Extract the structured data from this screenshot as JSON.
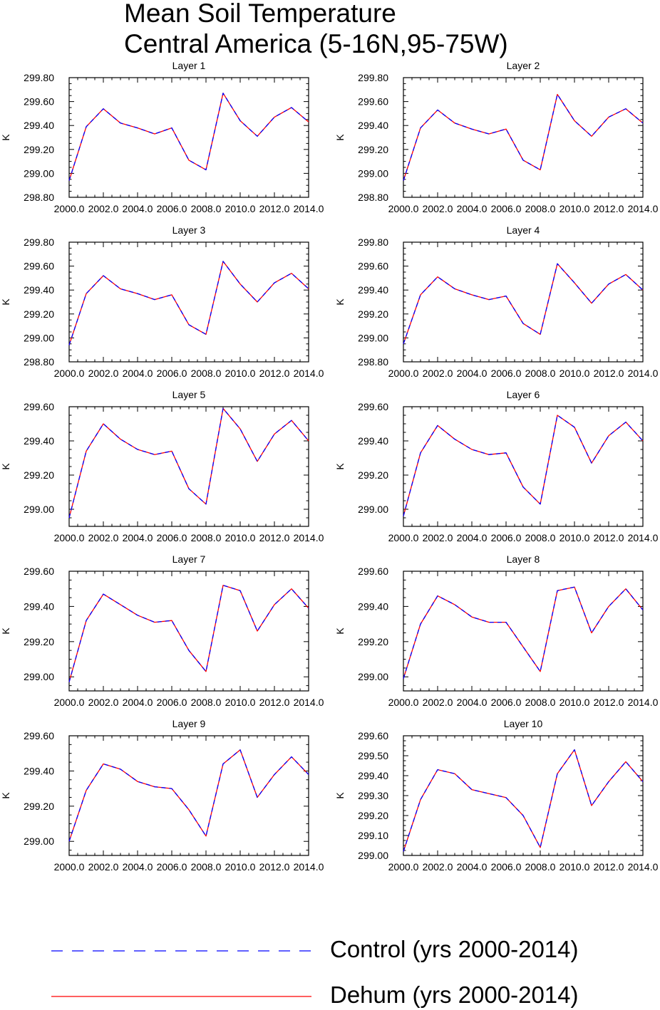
{
  "title_line1": "Mean Soil Temperature",
  "title_line2": "Central America (5-16N,95-75W)",
  "legend": [
    {
      "label": "Control (yrs 2000-2014)",
      "color": "#0000ff",
      "style": "dashed"
    },
    {
      "label": "Dehum (yrs 2000-2014)",
      "color": "#ff0000",
      "style": "solid"
    }
  ],
  "chart_data": [
    {
      "type": "line",
      "title": "Layer 1",
      "ylabel": "K",
      "x": [
        2000,
        2001,
        2002,
        2003,
        2004,
        2005,
        2006,
        2007,
        2008,
        2009,
        2010,
        2011,
        2012,
        2013,
        2014
      ],
      "xlim": [
        2000,
        2014
      ],
      "xticks": [
        2000,
        2002,
        2004,
        2006,
        2008,
        2010,
        2012,
        2014
      ],
      "xtick_labels": [
        "2000.0",
        "2002.0",
        "2004.0",
        "2006.0",
        "2008.0",
        "2010.0",
        "2012.0",
        "2014.0"
      ],
      "ylim": [
        298.8,
        299.8
      ],
      "yticks": [
        298.8,
        299.0,
        299.2,
        299.4,
        299.6,
        299.8
      ],
      "ytick_labels": [
        "298.80",
        "299.00",
        "299.20",
        "299.40",
        "299.60",
        "299.80"
      ],
      "series": [
        {
          "name": "Control (yrs 2000-2014)",
          "values": [
            298.94,
            299.39,
            299.54,
            299.42,
            299.38,
            299.33,
            299.38,
            299.11,
            299.03,
            299.67,
            299.44,
            299.31,
            299.47,
            299.55,
            299.43
          ]
        },
        {
          "name": "Dehum (yrs 2000-2014)",
          "values": [
            298.94,
            299.39,
            299.54,
            299.42,
            299.38,
            299.33,
            299.38,
            299.11,
            299.03,
            299.67,
            299.44,
            299.31,
            299.47,
            299.55,
            299.43
          ]
        }
      ]
    },
    {
      "type": "line",
      "title": "Layer 2",
      "ylabel": "K",
      "x": [
        2000,
        2001,
        2002,
        2003,
        2004,
        2005,
        2006,
        2007,
        2008,
        2009,
        2010,
        2011,
        2012,
        2013,
        2014
      ],
      "xlim": [
        2000,
        2014
      ],
      "xticks": [
        2000,
        2002,
        2004,
        2006,
        2008,
        2010,
        2012,
        2014
      ],
      "xtick_labels": [
        "2000.0",
        "2002.0",
        "2004.0",
        "2006.0",
        "2008.0",
        "2010.0",
        "2012.0",
        "2014.0"
      ],
      "ylim": [
        298.8,
        299.8
      ],
      "yticks": [
        298.8,
        299.0,
        299.2,
        299.4,
        299.6,
        299.8
      ],
      "ytick_labels": [
        "298.80",
        "299.00",
        "299.20",
        "299.40",
        "299.60",
        "299.80"
      ],
      "series": [
        {
          "name": "Control (yrs 2000-2014)",
          "values": [
            298.94,
            299.38,
            299.53,
            299.42,
            299.37,
            299.33,
            299.37,
            299.11,
            299.03,
            299.66,
            299.44,
            299.31,
            299.47,
            299.54,
            299.42
          ]
        },
        {
          "name": "Dehum (yrs 2000-2014)",
          "values": [
            298.94,
            299.38,
            299.53,
            299.42,
            299.37,
            299.33,
            299.37,
            299.11,
            299.03,
            299.66,
            299.44,
            299.31,
            299.47,
            299.54,
            299.42
          ]
        }
      ]
    },
    {
      "type": "line",
      "title": "Layer 3",
      "ylabel": "K",
      "x": [
        2000,
        2001,
        2002,
        2003,
        2004,
        2005,
        2006,
        2007,
        2008,
        2009,
        2010,
        2011,
        2012,
        2013,
        2014
      ],
      "xlim": [
        2000,
        2014
      ],
      "xticks": [
        2000,
        2002,
        2004,
        2006,
        2008,
        2010,
        2012,
        2014
      ],
      "xtick_labels": [
        "2000.0",
        "2002.0",
        "2004.0",
        "2006.0",
        "2008.0",
        "2010.0",
        "2012.0",
        "2014.0"
      ],
      "ylim": [
        298.8,
        299.8
      ],
      "yticks": [
        298.8,
        299.0,
        299.2,
        299.4,
        299.6,
        299.8
      ],
      "ytick_labels": [
        "298.80",
        "299.00",
        "299.20",
        "299.40",
        "299.60",
        "299.80"
      ],
      "series": [
        {
          "name": "Control (yrs 2000-2014)",
          "values": [
            298.94,
            299.37,
            299.52,
            299.41,
            299.37,
            299.32,
            299.36,
            299.11,
            299.03,
            299.64,
            299.45,
            299.3,
            299.46,
            299.54,
            299.41
          ]
        },
        {
          "name": "Dehum (yrs 2000-2014)",
          "values": [
            298.94,
            299.37,
            299.52,
            299.41,
            299.37,
            299.32,
            299.36,
            299.11,
            299.03,
            299.64,
            299.45,
            299.3,
            299.46,
            299.54,
            299.41
          ]
        }
      ]
    },
    {
      "type": "line",
      "title": "Layer 4",
      "ylabel": "K",
      "x": [
        2000,
        2001,
        2002,
        2003,
        2004,
        2005,
        2006,
        2007,
        2008,
        2009,
        2010,
        2011,
        2012,
        2013,
        2014
      ],
      "xlim": [
        2000,
        2014
      ],
      "xticks": [
        2000,
        2002,
        2004,
        2006,
        2008,
        2010,
        2012,
        2014
      ],
      "xtick_labels": [
        "2000.0",
        "2002.0",
        "2004.0",
        "2006.0",
        "2008.0",
        "2010.0",
        "2012.0",
        "2014.0"
      ],
      "ylim": [
        298.8,
        299.8
      ],
      "yticks": [
        298.8,
        299.0,
        299.2,
        299.4,
        299.6,
        299.8
      ],
      "ytick_labels": [
        "298.80",
        "299.00",
        "299.20",
        "299.40",
        "299.60",
        "299.80"
      ],
      "series": [
        {
          "name": "Control (yrs 2000-2014)",
          "values": [
            298.95,
            299.36,
            299.51,
            299.41,
            299.36,
            299.32,
            299.35,
            299.12,
            299.03,
            299.62,
            299.46,
            299.29,
            299.45,
            299.53,
            299.4
          ]
        },
        {
          "name": "Dehum (yrs 2000-2014)",
          "values": [
            298.95,
            299.36,
            299.51,
            299.41,
            299.36,
            299.32,
            299.35,
            299.12,
            299.03,
            299.62,
            299.46,
            299.29,
            299.45,
            299.53,
            299.4
          ]
        }
      ]
    },
    {
      "type": "line",
      "title": "Layer 5",
      "ylabel": "K",
      "x": [
        2000,
        2001,
        2002,
        2003,
        2004,
        2005,
        2006,
        2007,
        2008,
        2009,
        2010,
        2011,
        2012,
        2013,
        2014
      ],
      "xlim": [
        2000,
        2014
      ],
      "xticks": [
        2000,
        2002,
        2004,
        2006,
        2008,
        2010,
        2012,
        2014
      ],
      "xtick_labels": [
        "2000.0",
        "2002.0",
        "2004.0",
        "2006.0",
        "2008.0",
        "2010.0",
        "2012.0",
        "2014.0"
      ],
      "ylim": [
        298.9,
        299.6
      ],
      "yticks": [
        299.0,
        299.2,
        299.4,
        299.6
      ],
      "ytick_labels": [
        "299.00",
        "299.20",
        "299.40",
        "299.60"
      ],
      "series": [
        {
          "name": "Control (yrs 2000-2014)",
          "values": [
            298.95,
            299.34,
            299.5,
            299.41,
            299.35,
            299.32,
            299.34,
            299.12,
            299.03,
            299.59,
            299.47,
            299.28,
            299.44,
            299.52,
            299.4
          ]
        },
        {
          "name": "Dehum (yrs 2000-2014)",
          "values": [
            298.95,
            299.34,
            299.5,
            299.41,
            299.35,
            299.32,
            299.34,
            299.12,
            299.03,
            299.59,
            299.47,
            299.28,
            299.44,
            299.52,
            299.4
          ]
        }
      ]
    },
    {
      "type": "line",
      "title": "Layer 6",
      "ylabel": "K",
      "x": [
        2000,
        2001,
        2002,
        2003,
        2004,
        2005,
        2006,
        2007,
        2008,
        2009,
        2010,
        2011,
        2012,
        2013,
        2014
      ],
      "xlim": [
        2000,
        2014
      ],
      "xticks": [
        2000,
        2002,
        2004,
        2006,
        2008,
        2010,
        2012,
        2014
      ],
      "xtick_labels": [
        "2000.0",
        "2002.0",
        "2004.0",
        "2006.0",
        "2008.0",
        "2010.0",
        "2012.0",
        "2014.0"
      ],
      "ylim": [
        298.9,
        299.6
      ],
      "yticks": [
        299.0,
        299.2,
        299.4,
        299.6
      ],
      "ytick_labels": [
        "299.00",
        "299.20",
        "299.40",
        "299.60"
      ],
      "series": [
        {
          "name": "Control (yrs 2000-2014)",
          "values": [
            298.96,
            299.33,
            299.49,
            299.41,
            299.35,
            299.32,
            299.33,
            299.13,
            299.03,
            299.55,
            299.48,
            299.27,
            299.43,
            299.51,
            299.4
          ]
        },
        {
          "name": "Dehum (yrs 2000-2014)",
          "values": [
            298.96,
            299.33,
            299.49,
            299.41,
            299.35,
            299.32,
            299.33,
            299.13,
            299.03,
            299.55,
            299.48,
            299.27,
            299.43,
            299.51,
            299.4
          ]
        }
      ]
    },
    {
      "type": "line",
      "title": "Layer 7",
      "ylabel": "K",
      "x": [
        2000,
        2001,
        2002,
        2003,
        2004,
        2005,
        2006,
        2007,
        2008,
        2009,
        2010,
        2011,
        2012,
        2013,
        2014
      ],
      "xlim": [
        2000,
        2014
      ],
      "xticks": [
        2000,
        2002,
        2004,
        2006,
        2008,
        2010,
        2012,
        2014
      ],
      "xtick_labels": [
        "2000.0",
        "2002.0",
        "2004.0",
        "2006.0",
        "2008.0",
        "2010.0",
        "2012.0",
        "2014.0"
      ],
      "ylim": [
        298.92,
        299.6
      ],
      "yticks": [
        299.0,
        299.2,
        299.4,
        299.6
      ],
      "ytick_labels": [
        "299.00",
        "299.20",
        "299.40",
        "299.60"
      ],
      "series": [
        {
          "name": "Control (yrs 2000-2014)",
          "values": [
            298.97,
            299.32,
            299.47,
            299.41,
            299.35,
            299.31,
            299.32,
            299.15,
            299.03,
            299.52,
            299.49,
            299.26,
            299.41,
            299.5,
            299.39
          ]
        },
        {
          "name": "Dehum (yrs 2000-2014)",
          "values": [
            298.97,
            299.32,
            299.47,
            299.41,
            299.35,
            299.31,
            299.32,
            299.15,
            299.03,
            299.52,
            299.49,
            299.26,
            299.41,
            299.5,
            299.39
          ]
        }
      ]
    },
    {
      "type": "line",
      "title": "Layer 8",
      "ylabel": "K",
      "x": [
        2000,
        2001,
        2002,
        2003,
        2004,
        2005,
        2006,
        2007,
        2008,
        2009,
        2010,
        2011,
        2012,
        2013,
        2014
      ],
      "xlim": [
        2000,
        2014
      ],
      "xticks": [
        2000,
        2002,
        2004,
        2006,
        2008,
        2010,
        2012,
        2014
      ],
      "xtick_labels": [
        "2000.0",
        "2002.0",
        "2004.0",
        "2006.0",
        "2008.0",
        "2010.0",
        "2012.0",
        "2014.0"
      ],
      "ylim": [
        298.92,
        299.6
      ],
      "yticks": [
        299.0,
        299.2,
        299.4,
        299.6
      ],
      "ytick_labels": [
        "299.00",
        "299.20",
        "299.40",
        "299.60"
      ],
      "series": [
        {
          "name": "Control (yrs 2000-2014)",
          "values": [
            298.99,
            299.3,
            299.46,
            299.41,
            299.34,
            299.31,
            299.31,
            299.17,
            299.03,
            299.49,
            299.51,
            299.25,
            299.4,
            299.5,
            299.38
          ]
        },
        {
          "name": "Dehum (yrs 2000-2014)",
          "values": [
            298.99,
            299.3,
            299.46,
            299.41,
            299.34,
            299.31,
            299.31,
            299.17,
            299.03,
            299.49,
            299.51,
            299.25,
            299.4,
            299.5,
            299.38
          ]
        }
      ]
    },
    {
      "type": "line",
      "title": "Layer 9",
      "ylabel": "K",
      "x": [
        2000,
        2001,
        2002,
        2003,
        2004,
        2005,
        2006,
        2007,
        2008,
        2009,
        2010,
        2011,
        2012,
        2013,
        2014
      ],
      "xlim": [
        2000,
        2014
      ],
      "xticks": [
        2000,
        2002,
        2004,
        2006,
        2008,
        2010,
        2012,
        2014
      ],
      "xtick_labels": [
        "2000.0",
        "2002.0",
        "2004.0",
        "2006.0",
        "2008.0",
        "2010.0",
        "2012.0",
        "2014.0"
      ],
      "ylim": [
        298.92,
        299.6
      ],
      "yticks": [
        299.0,
        299.2,
        299.4,
        299.6
      ],
      "ytick_labels": [
        "299.00",
        "299.20",
        "299.40",
        "299.60"
      ],
      "series": [
        {
          "name": "Control (yrs 2000-2014)",
          "values": [
            299.0,
            299.29,
            299.44,
            299.41,
            299.34,
            299.31,
            299.3,
            299.18,
            299.03,
            299.44,
            299.52,
            299.25,
            299.38,
            299.48,
            299.38
          ]
        },
        {
          "name": "Dehum (yrs 2000-2014)",
          "values": [
            299.0,
            299.29,
            299.44,
            299.41,
            299.34,
            299.31,
            299.3,
            299.18,
            299.03,
            299.44,
            299.52,
            299.25,
            299.38,
            299.48,
            299.38
          ]
        }
      ]
    },
    {
      "type": "line",
      "title": "Layer 10",
      "ylabel": "K",
      "x": [
        2000,
        2001,
        2002,
        2003,
        2004,
        2005,
        2006,
        2007,
        2008,
        2009,
        2010,
        2011,
        2012,
        2013,
        2014
      ],
      "xlim": [
        2000,
        2014
      ],
      "xticks": [
        2000,
        2002,
        2004,
        2006,
        2008,
        2010,
        2012,
        2014
      ],
      "xtick_labels": [
        "2000.0",
        "2002.0",
        "2004.0",
        "2006.0",
        "2008.0",
        "2010.0",
        "2012.0",
        "2014.0"
      ],
      "ylim": [
        299.0,
        299.6
      ],
      "yticks": [
        299.0,
        299.1,
        299.2,
        299.3,
        299.4,
        299.5,
        299.6
      ],
      "ytick_labels": [
        "299.00",
        "299.10",
        "299.20",
        "299.30",
        "299.40",
        "299.50",
        "299.60"
      ],
      "series": [
        {
          "name": "Control (yrs 2000-2014)",
          "values": [
            299.02,
            299.28,
            299.43,
            299.41,
            299.33,
            299.31,
            299.29,
            299.2,
            299.04,
            299.41,
            299.53,
            299.25,
            299.37,
            299.47,
            299.37
          ]
        },
        {
          "name": "Dehum (yrs 2000-2014)",
          "values": [
            299.02,
            299.28,
            299.43,
            299.41,
            299.33,
            299.31,
            299.29,
            299.2,
            299.04,
            299.41,
            299.53,
            299.25,
            299.37,
            299.47,
            299.37
          ]
        }
      ]
    }
  ]
}
